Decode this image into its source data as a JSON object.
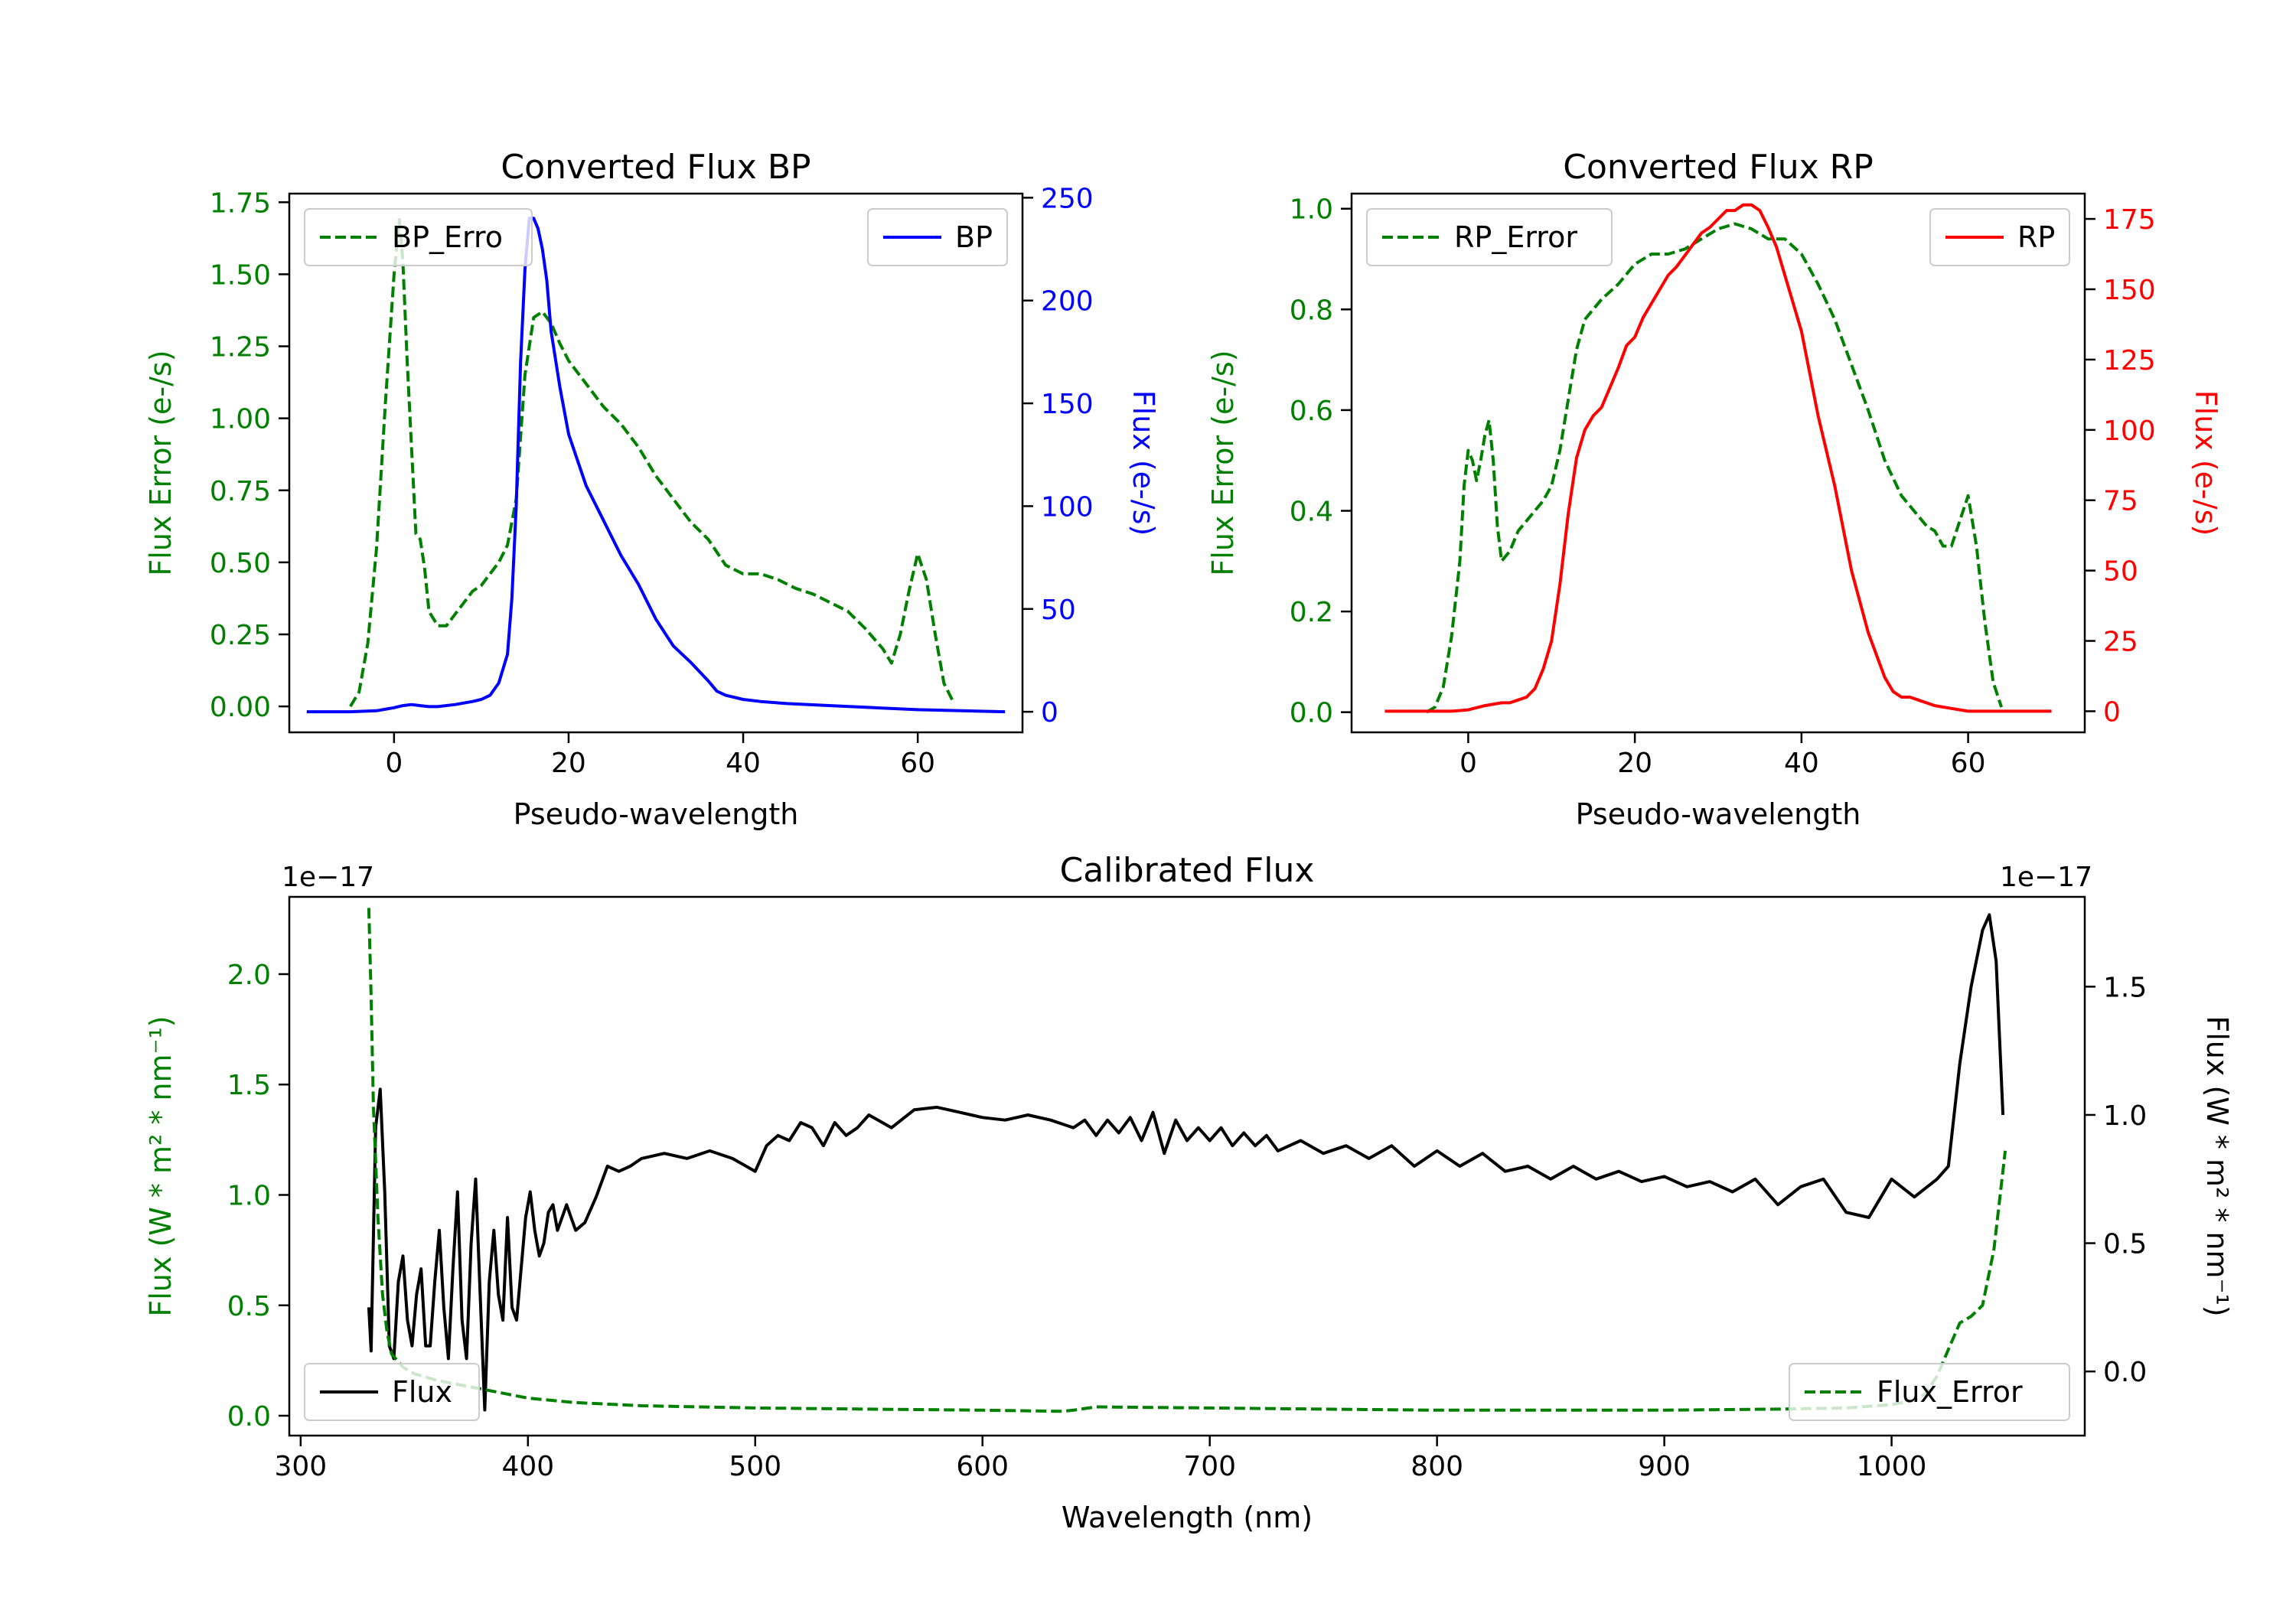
{
  "chart_data": [
    {
      "type": "line",
      "title": "Converted Flux BP",
      "xlabel": "Pseudo-wavelength",
      "xlim": [
        -12,
        72
      ],
      "x_ticks": [
        0,
        20,
        40,
        60
      ],
      "x_tick_labels": [
        "0",
        "20",
        "40",
        "60"
      ],
      "left_axis": {
        "label": "Flux Error (e-/s)",
        "color": "#008000",
        "ylim": [
          -0.09,
          1.78
        ],
        "ticks": [
          0,
          0.25,
          0.5,
          0.75,
          1.0,
          1.25,
          1.5,
          1.75
        ],
        "tick_labels": [
          "0.00",
          "0.25",
          "0.50",
          "0.75",
          "1.00",
          "1.25",
          "1.50",
          "1.75"
        ]
      },
      "right_axis": {
        "label": "Flux (e-/s)",
        "color": "#0000ff",
        "ylim": [
          -10,
          252
        ],
        "ticks": [
          0,
          50,
          100,
          150,
          200,
          250
        ],
        "tick_labels": [
          "0",
          "50",
          "100",
          "150",
          "200",
          "250"
        ]
      },
      "series": [
        {
          "name": "BP_Error",
          "axis": "left",
          "color": "#008000",
          "style": "dashed",
          "legend_label": "BP_Erro",
          "legend_position": "upper-left",
          "x": [
            -5,
            -4,
            -3,
            -2,
            -1,
            0,
            0.6,
            1,
            1.5,
            2,
            2.5,
            3,
            3.5,
            4,
            5,
            6,
            7,
            8,
            9,
            10,
            11,
            12,
            13,
            14,
            15,
            16,
            17,
            18,
            19,
            20,
            22,
            24,
            26,
            28,
            30,
            32,
            34,
            36,
            38,
            40,
            42,
            44,
            46,
            48,
            50,
            52,
            54,
            56,
            57,
            58,
            59,
            60,
            61,
            62,
            63,
            64
          ],
          "values": [
            0,
            0.05,
            0.22,
            0.55,
            1.05,
            1.5,
            1.69,
            1.55,
            1.2,
            0.9,
            0.6,
            0.58,
            0.48,
            0.33,
            0.28,
            0.28,
            0.32,
            0.36,
            0.4,
            0.42,
            0.46,
            0.5,
            0.56,
            0.72,
            1.15,
            1.35,
            1.37,
            1.33,
            1.26,
            1.2,
            1.12,
            1.04,
            0.98,
            0.9,
            0.8,
            0.72,
            0.64,
            0.58,
            0.49,
            0.46,
            0.46,
            0.44,
            0.41,
            0.39,
            0.36,
            0.33,
            0.27,
            0.2,
            0.15,
            0.25,
            0.4,
            0.53,
            0.44,
            0.25,
            0.08,
            0.02
          ]
        },
        {
          "name": "BP",
          "axis": "right",
          "color": "#0000ff",
          "style": "solid",
          "legend_label": "BP",
          "legend_position": "upper-right",
          "x": [
            -10,
            -5,
            -2,
            0,
            1,
            2,
            3,
            4,
            5,
            7,
            9,
            10,
            11,
            12,
            13,
            13.5,
            14,
            14.5,
            15,
            15.5,
            16,
            16.5,
            17,
            17.5,
            18,
            19,
            20,
            22,
            24,
            26,
            28,
            30,
            32,
            33,
            34,
            36,
            37,
            38,
            40,
            42,
            45,
            50,
            55,
            60,
            65,
            70
          ],
          "values": [
            0,
            0,
            0.5,
            2,
            3,
            3.5,
            3,
            2.5,
            2.5,
            3.5,
            5,
            6,
            8,
            14,
            28,
            55,
            100,
            170,
            215,
            240,
            240,
            235,
            225,
            210,
            185,
            158,
            135,
            110,
            93,
            76,
            62,
            45,
            32,
            28,
            24,
            15,
            10,
            8,
            6,
            5,
            4,
            3,
            2,
            1,
            0.5,
            0
          ]
        }
      ]
    },
    {
      "type": "line",
      "title": "Converted Flux RP",
      "xlabel": "Pseudo-wavelength",
      "xlim": [
        -14,
        74
      ],
      "x_ticks": [
        0,
        20,
        40,
        60
      ],
      "x_tick_labels": [
        "0",
        "20",
        "40",
        "60"
      ],
      "left_axis": {
        "label": "Flux Error (e-/s)",
        "color": "#008000",
        "ylim": [
          -0.04,
          1.03
        ],
        "ticks": [
          0,
          0.2,
          0.4,
          0.6,
          0.8,
          1.0
        ],
        "tick_labels": [
          "0.0",
          "0.2",
          "0.4",
          "0.6",
          "0.8",
          "1.0"
        ]
      },
      "right_axis": {
        "label": "Flux (e-/s)",
        "color": "#ff0000",
        "ylim": [
          -7.5,
          184
        ],
        "ticks": [
          0,
          25,
          50,
          75,
          100,
          125,
          150,
          175
        ],
        "tick_labels": [
          "0",
          "25",
          "50",
          "75",
          "100",
          "125",
          "150",
          "175"
        ]
      },
      "series": [
        {
          "name": "RP_Error",
          "axis": "left",
          "color": "#008000",
          "style": "dashed",
          "legend_label": "RP_Error",
          "legend_position": "upper-left",
          "x": [
            -5,
            -4,
            -3,
            -2,
            -1,
            -0.5,
            0,
            0.5,
            1,
            1.5,
            2,
            2.5,
            3,
            3.5,
            4,
            5,
            6,
            7,
            8,
            9,
            10,
            11,
            12,
            13,
            14,
            15,
            16,
            18,
            20,
            22,
            24,
            26,
            28,
            30,
            32,
            34,
            36,
            38,
            40,
            42,
            44,
            46,
            48,
            50,
            52,
            54,
            55,
            56,
            57,
            58,
            59,
            60,
            61,
            62,
            63,
            64
          ],
          "values": [
            0,
            0.01,
            0.05,
            0.15,
            0.3,
            0.45,
            0.52,
            0.5,
            0.46,
            0.5,
            0.55,
            0.58,
            0.5,
            0.37,
            0.3,
            0.32,
            0.36,
            0.38,
            0.4,
            0.42,
            0.45,
            0.52,
            0.62,
            0.72,
            0.78,
            0.8,
            0.82,
            0.85,
            0.89,
            0.91,
            0.91,
            0.92,
            0.94,
            0.96,
            0.97,
            0.96,
            0.94,
            0.94,
            0.91,
            0.85,
            0.78,
            0.69,
            0.6,
            0.5,
            0.43,
            0.39,
            0.37,
            0.36,
            0.33,
            0.33,
            0.38,
            0.43,
            0.33,
            0.18,
            0.06,
            0.01
          ]
        },
        {
          "name": "RP",
          "axis": "right",
          "color": "#ff0000",
          "style": "solid",
          "legend_label": "RP",
          "legend_position": "upper-right",
          "x": [
            -10,
            -5,
            -2,
            0,
            2,
            4,
            5,
            6,
            7,
            8,
            9,
            10,
            11,
            12,
            13,
            14,
            15,
            16,
            17,
            18,
            19,
            20,
            21,
            22,
            23,
            24,
            25,
            26,
            27,
            28,
            29,
            30,
            31,
            32,
            33,
            34,
            35,
            36,
            37,
            38,
            40,
            42,
            44,
            46,
            48,
            50,
            51,
            52,
            53,
            54,
            56,
            58,
            60,
            65,
            70
          ],
          "values": [
            0,
            0,
            0,
            0.5,
            2,
            3,
            3,
            4,
            5,
            8,
            15,
            25,
            45,
            70,
            90,
            100,
            105,
            108,
            115,
            122,
            130,
            133,
            140,
            145,
            150,
            155,
            158,
            162,
            166,
            170,
            172,
            175,
            178,
            178,
            180,
            180,
            178,
            172,
            165,
            155,
            135,
            105,
            80,
            50,
            28,
            12,
            7,
            5,
            5,
            4,
            2,
            1,
            0,
            0,
            0
          ]
        }
      ]
    },
    {
      "type": "line",
      "title": "Calibrated Flux",
      "xlabel": "Wavelength (nm)",
      "xlim": [
        295,
        1085
      ],
      "x_ticks": [
        300,
        400,
        500,
        600,
        700,
        800,
        900,
        1000
      ],
      "x_tick_labels": [
        "300",
        "400",
        "500",
        "600",
        "700",
        "800",
        "900",
        "1000"
      ],
      "left_axis": {
        "label": "Flux (W * m² * nm⁻¹)",
        "offset_label": "1e−17",
        "color": "#008000",
        "ylim": [
          -0.09,
          2.35
        ],
        "ticks": [
          0,
          0.5,
          1.0,
          1.5,
          2.0
        ],
        "tick_labels": [
          "0.0",
          "0.5",
          "1.0",
          "1.5",
          "2.0"
        ]
      },
      "right_axis": {
        "label": "Flux (W * m² * nm⁻¹)",
        "offset_label": "1e−17",
        "color": "#000000",
        "ylim": [
          -0.25,
          1.85
        ],
        "ticks": [
          0,
          0.5,
          1.0,
          1.5
        ],
        "tick_labels": [
          "0.0",
          "0.5",
          "1.0",
          "1.5"
        ]
      },
      "series": [
        {
          "name": "Flux",
          "axis": "right",
          "color": "#000000",
          "style": "solid",
          "legend_label": "Flux",
          "legend_position": "lower-left",
          "x": [
            330,
            331,
            333,
            335,
            337,
            339,
            341,
            343,
            345,
            347,
            349,
            351,
            353,
            355,
            357,
            359,
            361,
            363,
            365,
            367,
            369,
            371,
            373,
            375,
            377,
            379,
            381,
            383,
            385,
            387,
            389,
            391,
            393,
            395,
            397,
            399,
            401,
            403,
            405,
            407,
            409,
            411,
            413,
            415,
            417,
            419,
            421,
            425,
            430,
            435,
            440,
            445,
            450,
            460,
            470,
            480,
            490,
            500,
            505,
            510,
            515,
            520,
            525,
            530,
            535,
            540,
            545,
            550,
            560,
            570,
            580,
            590,
            600,
            610,
            620,
            630,
            640,
            645,
            650,
            655,
            660,
            665,
            670,
            675,
            680,
            685,
            690,
            695,
            700,
            705,
            710,
            715,
            720,
            725,
            730,
            740,
            750,
            760,
            770,
            780,
            790,
            800,
            810,
            820,
            830,
            840,
            850,
            860,
            870,
            880,
            890,
            900,
            910,
            920,
            930,
            940,
            950,
            960,
            970,
            980,
            990,
            1000,
            1010,
            1020,
            1025,
            1030,
            1035,
            1040,
            1043,
            1046,
            1049
          ],
          "values": [
            0.25,
            0.08,
            0.95,
            1.1,
            0.7,
            0.1,
            0.05,
            0.35,
            0.45,
            0.2,
            0.1,
            0.3,
            0.4,
            0.1,
            0.1,
            0.35,
            0.55,
            0.25,
            0.05,
            0.4,
            0.7,
            0.2,
            0.05,
            0.5,
            0.75,
            0.3,
            -0.15,
            0.35,
            0.55,
            0.3,
            0.2,
            0.6,
            0.25,
            0.2,
            0.4,
            0.6,
            0.7,
            0.55,
            0.45,
            0.5,
            0.62,
            0.65,
            0.55,
            0.6,
            0.65,
            0.6,
            0.55,
            0.58,
            0.68,
            0.8,
            0.78,
            0.8,
            0.83,
            0.85,
            0.83,
            0.86,
            0.83,
            0.78,
            0.88,
            0.92,
            0.9,
            0.97,
            0.95,
            0.88,
            0.97,
            0.92,
            0.95,
            1.0,
            0.95,
            1.02,
            1.03,
            1.01,
            0.99,
            0.98,
            1.0,
            0.98,
            0.95,
            0.98,
            0.92,
            0.98,
            0.93,
            0.99,
            0.9,
            1.01,
            0.85,
            0.98,
            0.9,
            0.95,
            0.9,
            0.95,
            0.88,
            0.93,
            0.88,
            0.92,
            0.86,
            0.9,
            0.85,
            0.88,
            0.83,
            0.88,
            0.8,
            0.86,
            0.8,
            0.85,
            0.78,
            0.8,
            0.75,
            0.8,
            0.75,
            0.78,
            0.74,
            0.76,
            0.72,
            0.74,
            0.7,
            0.75,
            0.65,
            0.72,
            0.75,
            0.62,
            0.6,
            0.75,
            0.68,
            0.75,
            0.8,
            1.2,
            1.5,
            1.72,
            1.78,
            1.6,
            1.0
          ]
        },
        {
          "name": "Flux_Error",
          "axis": "left",
          "color": "#008000",
          "style": "dashed",
          "legend_label": "Flux_Error",
          "legend_position": "lower-right",
          "x": [
            330,
            331,
            332,
            334,
            336,
            338,
            340,
            345,
            350,
            360,
            370,
            380,
            390,
            400,
            420,
            450,
            500,
            550,
            600,
            635,
            640,
            650,
            700,
            750,
            800,
            850,
            900,
            950,
            980,
            1000,
            1010,
            1015,
            1020,
            1025,
            1030,
            1035,
            1040,
            1045,
            1050
          ],
          "values": [
            2.3,
            1.9,
            1.4,
            0.9,
            0.55,
            0.38,
            0.28,
            0.22,
            0.19,
            0.16,
            0.14,
            0.12,
            0.1,
            0.08,
            0.06,
            0.045,
            0.035,
            0.03,
            0.025,
            0.02,
            0.025,
            0.04,
            0.035,
            0.03,
            0.025,
            0.025,
            0.025,
            0.03,
            0.035,
            0.05,
            0.07,
            0.1,
            0.18,
            0.3,
            0.42,
            0.45,
            0.5,
            0.75,
            1.2
          ]
        }
      ]
    }
  ]
}
